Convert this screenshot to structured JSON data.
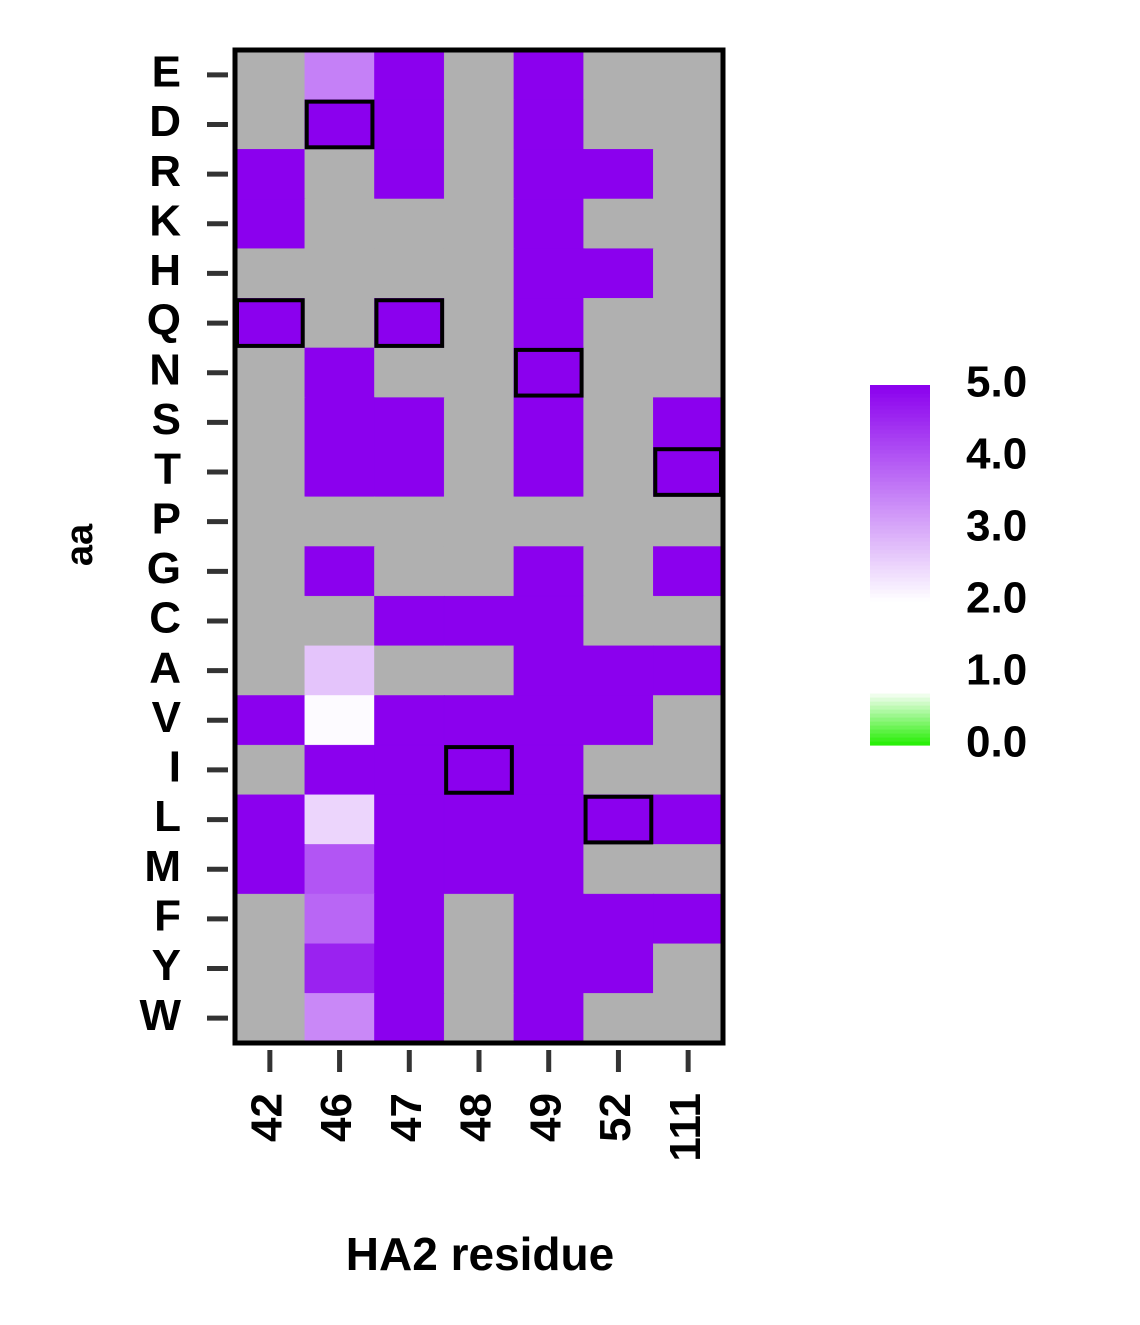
{
  "chart_data": {
    "type": "heatmap",
    "title": "",
    "xlabel": "HA2 residue",
    "ylabel": "aa",
    "x_categories": [
      "42",
      "46",
      "47",
      "48",
      "49",
      "52",
      "111"
    ],
    "y_categories": [
      "E",
      "D",
      "R",
      "K",
      "H",
      "Q",
      "N",
      "S",
      "T",
      "P",
      "G",
      "C",
      "A",
      "V",
      "I",
      "L",
      "M",
      "F",
      "Y",
      "W"
    ],
    "values": [
      [
        null,
        3.5,
        5.0,
        null,
        5.0,
        null,
        null
      ],
      [
        null,
        5.0,
        5.0,
        null,
        5.0,
        null,
        null
      ],
      [
        5.0,
        null,
        5.0,
        null,
        5.0,
        5.0,
        null
      ],
      [
        5.0,
        null,
        null,
        null,
        5.0,
        null,
        null
      ],
      [
        null,
        null,
        null,
        null,
        5.0,
        5.0,
        null
      ],
      [
        5.0,
        null,
        5.0,
        null,
        5.0,
        null,
        null
      ],
      [
        null,
        5.0,
        null,
        null,
        5.0,
        null,
        null
      ],
      [
        null,
        5.0,
        5.0,
        null,
        5.0,
        null,
        5.0
      ],
      [
        null,
        5.0,
        5.0,
        null,
        5.0,
        null,
        5.0
      ],
      [
        null,
        null,
        null,
        null,
        null,
        null,
        null
      ],
      [
        null,
        5.0,
        null,
        null,
        5.0,
        null,
        5.0
      ],
      [
        null,
        null,
        5.0,
        5.0,
        5.0,
        null,
        null
      ],
      [
        null,
        2.7,
        null,
        null,
        5.0,
        5.0,
        5.0
      ],
      [
        5.0,
        2.05,
        5.0,
        5.0,
        5.0,
        5.0,
        null
      ],
      [
        null,
        5.0,
        5.0,
        5.0,
        5.0,
        null,
        null
      ],
      [
        5.0,
        2.5,
        5.0,
        5.0,
        5.0,
        5.0,
        5.0
      ],
      [
        5.0,
        4.0,
        5.0,
        5.0,
        5.0,
        null,
        null
      ],
      [
        null,
        3.8,
        5.0,
        null,
        5.0,
        5.0,
        5.0
      ],
      [
        null,
        4.6,
        5.0,
        null,
        5.0,
        5.0,
        null
      ],
      [
        null,
        3.4,
        5.0,
        null,
        5.0,
        null,
        null
      ]
    ],
    "missing_color": "#b0b0b0",
    "highlighted_cells": [
      {
        "y": "D",
        "x": "46"
      },
      {
        "y": "Q",
        "x": "42"
      },
      {
        "y": "Q",
        "x": "47"
      },
      {
        "y": "N",
        "x": "49"
      },
      {
        "y": "T",
        "x": "111"
      },
      {
        "y": "I",
        "x": "48"
      },
      {
        "y": "L",
        "x": "52"
      }
    ],
    "colorbar": {
      "tick_labels": [
        "5.0",
        "4.0",
        "3.0",
        "2.0",
        "1.0",
        "0.0"
      ],
      "tick_values": [
        5.0,
        4.0,
        3.0,
        2.0,
        1.0,
        0.0
      ],
      "range": [
        0.0,
        5.0
      ],
      "stops": [
        {
          "value": 0.0,
          "color": "#22ee00"
        },
        {
          "value": 0.75,
          "color": "#ffffff"
        },
        {
          "value": 1.3,
          "color": "#ffffff"
        },
        {
          "value": 2.0,
          "color": "#ffffff"
        },
        {
          "value": 5.0,
          "color": "#8b00ee"
        }
      ]
    },
    "grid": false,
    "legend": "right"
  }
}
